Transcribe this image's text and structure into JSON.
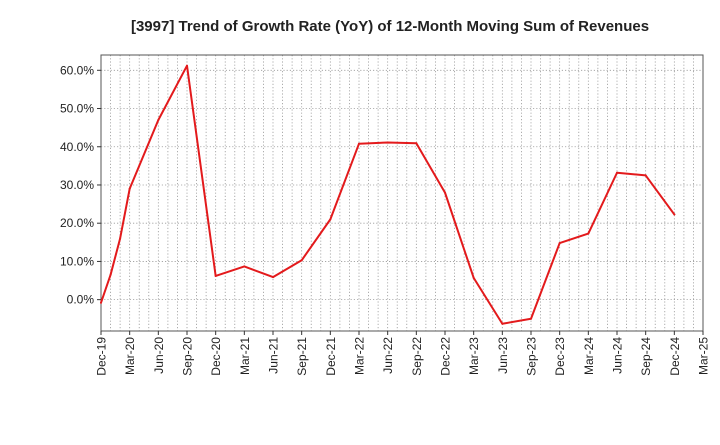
{
  "chart_data": {
    "type": "line",
    "title": "[3997]  Trend of Growth Rate (YoY) of 12-Month Moving Sum of Revenues",
    "xlabel": "",
    "ylabel": "",
    "x_ticks": [
      "Dec-19",
      "Mar-20",
      "Jun-20",
      "Sep-20",
      "Dec-20",
      "Mar-21",
      "Jun-21",
      "Sep-21",
      "Dec-21",
      "Mar-22",
      "Jun-22",
      "Sep-22",
      "Dec-22",
      "Mar-23",
      "Jun-23",
      "Sep-23",
      "Dec-23",
      "Mar-24",
      "Jun-24",
      "Sep-24",
      "Dec-24",
      "Mar-25"
    ],
    "y_ticks": [
      0,
      10,
      20,
      30,
      40,
      50,
      60
    ],
    "y_tick_labels": [
      "0.0%",
      "10.0%",
      "20.0%",
      "30.0%",
      "40.0%",
      "50.0%",
      "60.0%"
    ],
    "ylim": [
      -8.2,
      64.0
    ],
    "grid": true,
    "series": [
      {
        "color": "#e31a1c",
        "x": [
          "Dec-19",
          "Jan-20",
          "Feb-20",
          "Mar-20",
          "Jun-20",
          "Sep-20",
          "Dec-20",
          "Mar-21",
          "Jun-21",
          "Sep-21",
          "Dec-21",
          "Mar-22",
          "Jun-22",
          "Sep-22",
          "Dec-22",
          "Mar-23",
          "Jun-23",
          "Sep-23",
          "Dec-23",
          "Mar-24",
          "Jun-24",
          "Sep-24",
          "Dec-24"
        ],
        "values": [
          -0.8,
          6.5,
          16.0,
          29.0,
          47.0,
          61.2,
          6.2,
          8.7,
          5.9,
          10.3,
          21.0,
          40.8,
          41.1,
          40.9,
          28.0,
          5.7,
          -6.3,
          -5.0,
          14.8,
          17.3,
          33.2,
          32.5,
          22.3
        ]
      }
    ]
  }
}
